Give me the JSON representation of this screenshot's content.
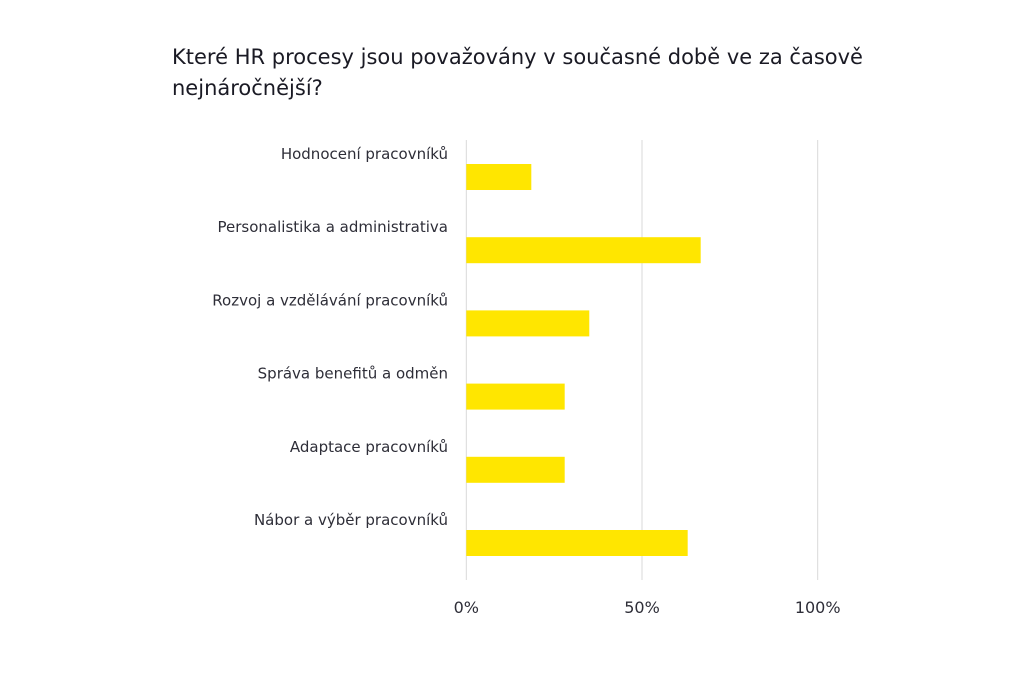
{
  "chart_data": {
    "type": "bar",
    "orientation": "horizontal",
    "title": "Které HR procesy jsou považovány v současné době ve za časově nejnáročnější?",
    "categories": [
      "Hodnocení pracovníků",
      "Personalistika a administrativa",
      "Rozvoj a vzdělávání pracovníků",
      "Správa benefitů a odměn",
      "Adaptace pracovníků",
      "Nábor a výběr pracovníků"
    ],
    "values": [
      18.5,
      66.7,
      35,
      28,
      28,
      63
    ],
    "unit": "%",
    "xlim": [
      0,
      100
    ],
    "ticks": [
      0,
      50,
      100
    ],
    "tick_labels": [
      "0%",
      "50%",
      "100%"
    ],
    "xlabel": "",
    "ylabel": "",
    "grid": "vertical",
    "legend": "none",
    "bar_color": "#ffe600",
    "grid_color": "#d9d9d9"
  }
}
